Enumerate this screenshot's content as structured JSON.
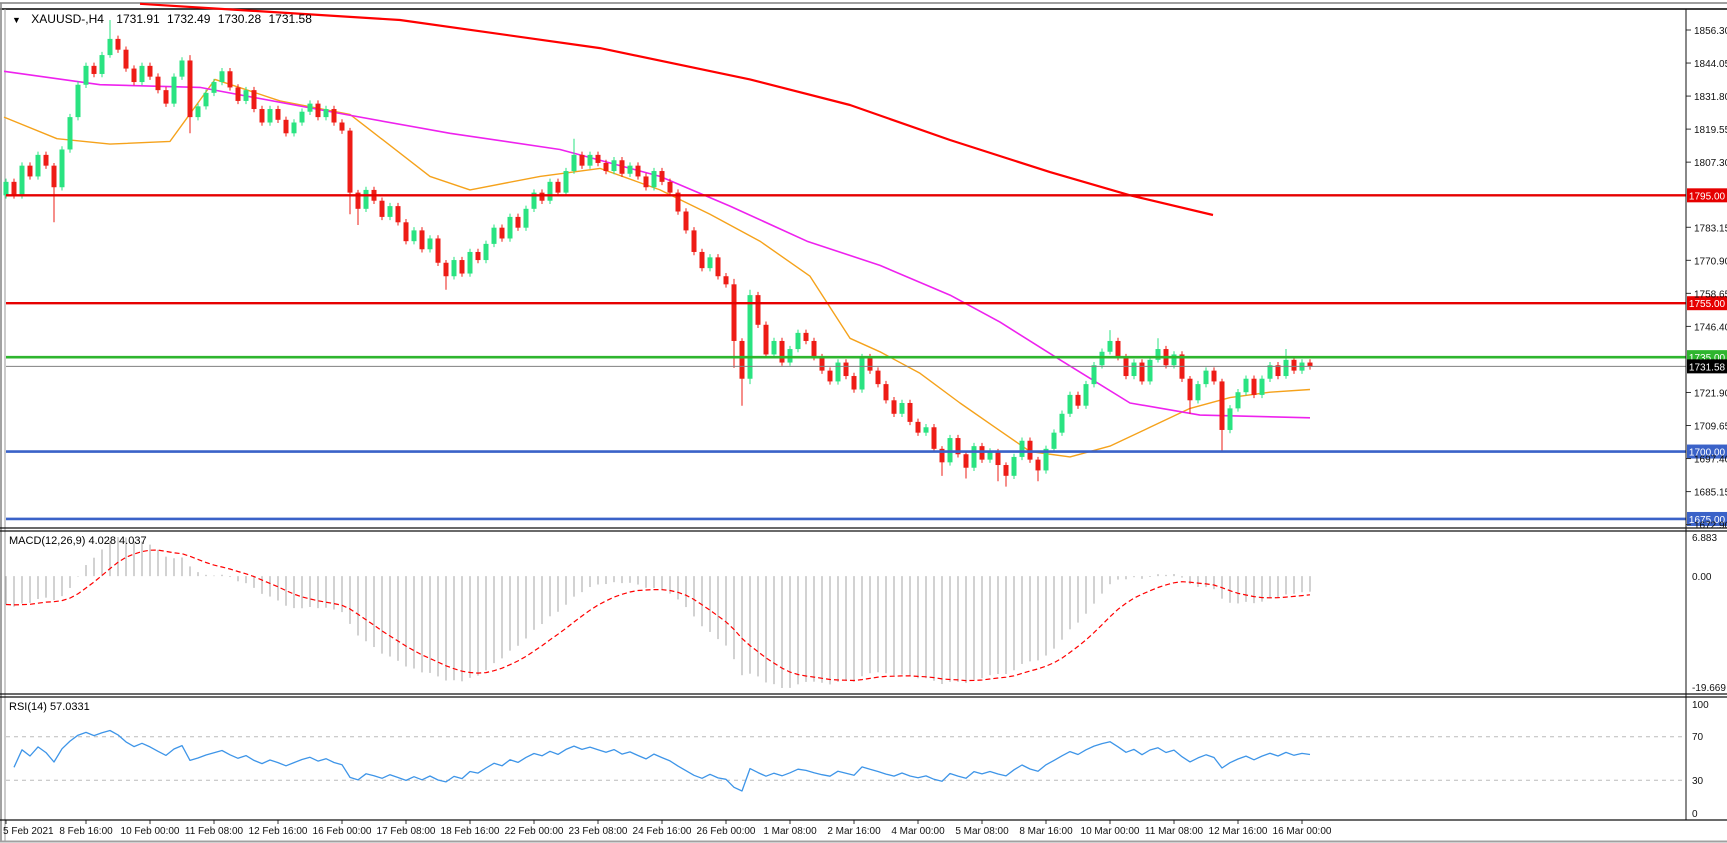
{
  "header": {
    "dropdown_icon": "▼",
    "symbol_period": "XAUUSD-,H4",
    "open": "1731.91",
    "high": "1732.49",
    "low": "1730.28",
    "close": "1731.58"
  },
  "chart_data": {
    "type": "candlestick",
    "symbol": "XAUUSD-",
    "timeframe": "H4",
    "title": "XAUUSD-,H4 1731.91 1732.49 1730.28 1731.58",
    "current_ohlc": {
      "open": 1731.91,
      "high": 1732.49,
      "low": 1730.28,
      "close": 1731.58
    },
    "colors": {
      "bull": "#2ae381",
      "bear": "#ee1c16",
      "ma_slow": "#ff0000",
      "ma_mid": "#ee22ee",
      "ma_fast": "#f5a21b",
      "resistance": "#e60000",
      "support_green": "#2eb52e",
      "support_blue": "#3a62c8",
      "current_line": "#808080",
      "current_badge": "#000000",
      "macd_hist": "#b4b4b4",
      "macd_signal": "#ff0000",
      "rsi_line": "#3e95e8",
      "rsi_level": "#bbbbbb"
    },
    "first_open": 1795,
    "closes": [
      1800,
      1795,
      1806,
      1802,
      1810,
      1806,
      1798,
      1812,
      1824,
      1836,
      1843,
      1840,
      1847,
      1853,
      1849,
      1842,
      1837,
      1843,
      1839,
      1834,
      1829,
      1839,
      1845,
      1824,
      1828,
      1833,
      1837,
      1841,
      1835,
      1830,
      1834,
      1827,
      1822,
      1827,
      1823,
      1818,
      1822,
      1826,
      1829,
      1824,
      1827,
      1822,
      1819,
      1796,
      1790,
      1797,
      1793,
      1787,
      1791,
      1785,
      1778,
      1782,
      1775,
      1779,
      1770,
      1765,
      1771,
      1766,
      1774,
      1771,
      1777,
      1783,
      1779,
      1787,
      1783,
      1790,
      1796,
      1793,
      1800,
      1796,
      1804,
      1810,
      1806,
      1810,
      1807,
      1804,
      1808,
      1803,
      1806,
      1802,
      1798,
      1804,
      1800,
      1796,
      1789,
      1782,
      1774,
      1768,
      1772,
      1765,
      1762,
      1741,
      1727,
      1758,
      1747,
      1736,
      1741,
      1733,
      1738,
      1744,
      1741,
      1735,
      1730,
      1726,
      1733,
      1728,
      1723,
      1735,
      1730,
      1725,
      1719,
      1714,
      1718,
      1711,
      1707,
      1709,
      1701,
      1696,
      1705,
      1699,
      1694,
      1702,
      1697,
      1700,
      1695,
      1691,
      1698,
      1704,
      1697,
      1693,
      1701,
      1707,
      1714,
      1721,
      1717,
      1725,
      1732,
      1737,
      1741,
      1735,
      1728,
      1733,
      1726,
      1734,
      1738,
      1732,
      1736,
      1727,
      1719,
      1725,
      1730,
      1726,
      1708,
      1716,
      1722,
      1727,
      1721,
      1727,
      1732,
      1728,
      1734,
      1730,
      1733,
      1731.58
    ],
    "wick_overrides": {
      "6": [
        1,
        13
      ],
      "13": [
        7,
        1
      ],
      "23": [
        2,
        6
      ],
      "43": [
        1,
        8
      ],
      "44": [
        1,
        6
      ],
      "55": [
        1,
        5
      ],
      "71": [
        6,
        1
      ],
      "91": [
        2,
        10
      ],
      "92": [
        1,
        10
      ],
      "93": [
        2,
        2
      ],
      "117": [
        1,
        5
      ],
      "120": [
        1,
        4
      ],
      "124": [
        1,
        6
      ],
      "125": [
        1,
        4
      ],
      "129": [
        1,
        4
      ],
      "138": [
        4,
        1
      ],
      "144": [
        4,
        1
      ],
      "148": [
        1,
        5
      ],
      "152": [
        1,
        8
      ],
      "160": [
        4,
        1
      ]
    },
    "price_axis_ticks": [
      "1856.30",
      "1844.05",
      "1831.80",
      "1819.55",
      "1807.30",
      "1783.15",
      "1770.90",
      "1758.65",
      "1746.40",
      "1721.90",
      "1709.65",
      "1697.40",
      "1685.15",
      "1672.90"
    ],
    "horizontal_lines": [
      {
        "price": 1795.0,
        "label": "1795.00",
        "color": "#e60000",
        "width": 2.4
      },
      {
        "price": 1755.0,
        "label": "1755.00",
        "color": "#e60000",
        "width": 2.4
      },
      {
        "price": 1735.0,
        "label": "1735.00",
        "color": "#2eb52e",
        "width": 2.6
      },
      {
        "price": 1700.0,
        "label": "1700.00",
        "color": "#3a62c8",
        "width": 2.6
      },
      {
        "price": 1675.0,
        "label": "1675.00",
        "color": "#3a62c8",
        "width": 2.6
      }
    ],
    "current_price": {
      "price": 1731.58,
      "label": "1731.58"
    },
    "moving_averages": [
      {
        "name": "ma-fast-orange",
        "color": "#f5a21b",
        "width": 1.4,
        "points": [
          [
            4,
            1824
          ],
          [
            57,
            1816
          ],
          [
            110,
            1814
          ],
          [
            170,
            1815
          ],
          [
            215,
            1838
          ],
          [
            280,
            1830
          ],
          [
            350,
            1825
          ],
          [
            430,
            1802
          ],
          [
            470,
            1797
          ],
          [
            540,
            1802
          ],
          [
            600,
            1805
          ],
          [
            660,
            1797
          ],
          [
            710,
            1788
          ],
          [
            760,
            1778
          ],
          [
            810,
            1765
          ],
          [
            850,
            1742
          ],
          [
            880,
            1737
          ],
          [
            920,
            1729
          ],
          [
            960,
            1718
          ],
          [
            995,
            1709
          ],
          [
            1030,
            1700
          ],
          [
            1070,
            1698
          ],
          [
            1110,
            1702
          ],
          [
            1150,
            1709
          ],
          [
            1190,
            1716
          ],
          [
            1230,
            1720
          ],
          [
            1270,
            1722
          ],
          [
            1310,
            1723
          ]
        ]
      },
      {
        "name": "ma-mid-magenta",
        "color": "#ee22ee",
        "width": 1.6,
        "points": [
          [
            4,
            1841
          ],
          [
            100,
            1836
          ],
          [
            200,
            1835
          ],
          [
            345,
            1825
          ],
          [
            450,
            1818
          ],
          [
            560,
            1812
          ],
          [
            660,
            1802
          ],
          [
            730,
            1791
          ],
          [
            807,
            1778
          ],
          [
            880,
            1769
          ],
          [
            950,
            1758
          ],
          [
            1000,
            1748
          ],
          [
            1060,
            1734
          ],
          [
            1130,
            1718
          ],
          [
            1200,
            1713.5
          ],
          [
            1310,
            1712.5
          ]
        ]
      },
      {
        "name": "ma-slow-red",
        "color": "#ff0000",
        "width": 2.2,
        "points": [
          [
            140,
            1866
          ],
          [
            400,
            1860
          ],
          [
            600,
            1849.6
          ],
          [
            750,
            1838
          ],
          [
            850,
            1828.5
          ],
          [
            950,
            1815.5
          ],
          [
            1050,
            1803.6
          ],
          [
            1130,
            1795
          ],
          [
            1213,
            1787.7
          ]
        ]
      }
    ],
    "time_labels": [
      "5 Feb 2021",
      "8 Feb 16:00",
      "10 Feb 00:00",
      "11 Feb 08:00",
      "12 Feb 16:00",
      "16 Feb 00:00",
      "17 Feb 08:00",
      "18 Feb 16:00",
      "22 Feb 00:00",
      "23 Feb 08:00",
      "24 Feb 16:00",
      "26 Feb 00:00",
      "1 Mar 08:00",
      "2 Mar 16:00",
      "4 Mar 00:00",
      "5 Mar 08:00",
      "8 Mar 16:00",
      "10 Mar 00:00",
      "11 Mar 08:00",
      "12 Mar 16:00",
      "16 Mar 00:00"
    ],
    "indicators": {
      "macd": {
        "label": "MACD(12,26,9) 4.028 4.037",
        "params": [
          12,
          26,
          9
        ],
        "main_value": 4.028,
        "signal_value": 4.037,
        "axis": [
          "6.883",
          "0.00",
          "-19.669"
        ],
        "max": 6.883,
        "min": -19.669
      },
      "rsi": {
        "label": "RSI(14) 57.0331",
        "period": 14,
        "value": 57.0331,
        "axis": [
          "100",
          "70",
          "30",
          "0"
        ],
        "levels": [
          70,
          30
        ]
      }
    }
  }
}
